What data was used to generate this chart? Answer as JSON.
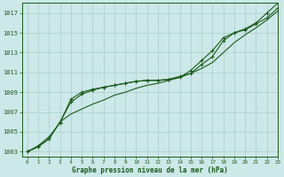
{
  "bg_color": "#cce8e8",
  "plot_bg_color": "#cce8e8",
  "grid_color": "#aacccc",
  "line_color": "#1a5c1a",
  "marker_color": "#1a5c1a",
  "xlabel": "Graphe pression niveau de la mer (hPa)",
  "xlim": [
    -0.5,
    23
  ],
  "ylim": [
    1002.5,
    1018.0
  ],
  "yticks": [
    1003,
    1005,
    1007,
    1009,
    1011,
    1013,
    1015,
    1017
  ],
  "xticks": [
    0,
    1,
    2,
    3,
    4,
    5,
    6,
    7,
    8,
    9,
    10,
    11,
    12,
    13,
    14,
    15,
    16,
    17,
    18,
    19,
    20,
    21,
    22,
    23
  ],
  "series1_x": [
    0,
    1,
    2,
    3,
    4,
    5,
    6,
    7,
    8,
    9,
    10,
    11,
    12,
    13,
    14,
    15,
    16,
    17,
    18,
    19,
    20,
    21,
    22,
    23
  ],
  "series1_y": [
    1003.0,
    1003.5,
    1004.3,
    1006.0,
    1006.8,
    1007.3,
    1007.8,
    1008.2,
    1008.7,
    1009.0,
    1009.4,
    1009.7,
    1009.9,
    1010.2,
    1010.5,
    1010.9,
    1011.4,
    1012.0,
    1013.0,
    1014.0,
    1014.8,
    1015.5,
    1016.3,
    1017.2
  ],
  "series2_x": [
    0,
    1,
    2,
    3,
    4,
    5,
    6,
    7,
    8,
    9,
    10,
    11,
    12,
    13,
    14,
    15,
    16,
    17,
    18,
    19,
    20,
    21,
    22,
    23
  ],
  "series2_y": [
    1003.0,
    1003.6,
    1004.5,
    1005.9,
    1008.3,
    1009.0,
    1009.3,
    1009.5,
    1009.7,
    1009.9,
    1010.1,
    1010.2,
    1010.2,
    1010.3,
    1010.6,
    1010.9,
    1011.8,
    1012.6,
    1014.2,
    1015.0,
    1015.3,
    1015.9,
    1016.5,
    1017.5
  ],
  "series3_x": [
    0,
    1,
    2,
    3,
    4,
    5,
    6,
    7,
    8,
    9,
    10,
    11,
    12,
    13,
    14,
    15,
    16,
    17,
    18,
    19,
    20,
    21,
    22,
    23
  ],
  "series3_y": [
    1003.0,
    1003.5,
    1004.3,
    1006.0,
    1008.0,
    1008.8,
    1009.2,
    1009.5,
    1009.7,
    1009.9,
    1010.1,
    1010.2,
    1010.2,
    1010.3,
    1010.5,
    1011.2,
    1012.2,
    1013.2,
    1014.5,
    1015.0,
    1015.4,
    1016.0,
    1017.0,
    1018.0
  ]
}
